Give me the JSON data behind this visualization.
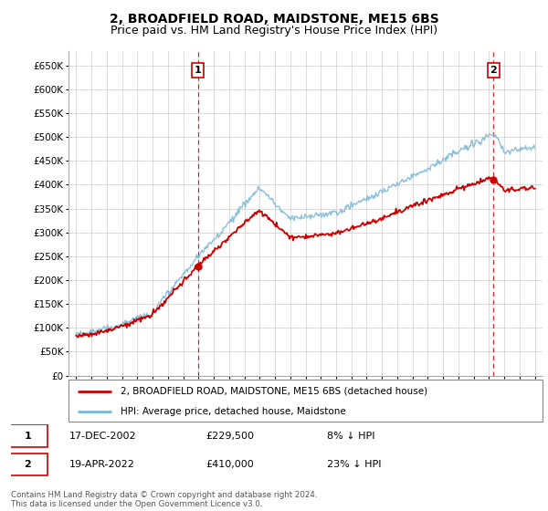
{
  "title": "2, BROADFIELD ROAD, MAIDSTONE, ME15 6BS",
  "subtitle": "Price paid vs. HM Land Registry's House Price Index (HPI)",
  "ylim": [
    0,
    680000
  ],
  "yticks": [
    0,
    50000,
    100000,
    150000,
    200000,
    250000,
    300000,
    350000,
    400000,
    450000,
    500000,
    550000,
    600000,
    650000
  ],
  "xlim": [
    1994.5,
    2025.5
  ],
  "xticks": [
    1995,
    1996,
    1997,
    1998,
    1999,
    2000,
    2001,
    2002,
    2003,
    2004,
    2005,
    2006,
    2007,
    2008,
    2009,
    2010,
    2011,
    2012,
    2013,
    2014,
    2015,
    2016,
    2017,
    2018,
    2019,
    2020,
    2021,
    2022,
    2023,
    2024,
    2025
  ],
  "sale1_year": 2002.96,
  "sale1_value": 229500,
  "sale2_year": 2022.29,
  "sale2_value": 410000,
  "hpi_color": "#7ab8d9",
  "price_color": "#cc0000",
  "grid_color": "#cccccc",
  "legend_label_price": "2, BROADFIELD ROAD, MAIDSTONE, ME15 6BS (detached house)",
  "legend_label_hpi": "HPI: Average price, detached house, Maidstone",
  "annotation1_label": "1",
  "annotation1_date": "17-DEC-2002",
  "annotation1_price": "£229,500",
  "annotation1_hpi": "8% ↓ HPI",
  "annotation2_label": "2",
  "annotation2_date": "19-APR-2022",
  "annotation2_price": "£410,000",
  "annotation2_hpi": "23% ↓ HPI",
  "footer": "Contains HM Land Registry data © Crown copyright and database right 2024.\nThis data is licensed under the Open Government Licence v3.0.",
  "title_fontsize": 10,
  "subtitle_fontsize": 9
}
